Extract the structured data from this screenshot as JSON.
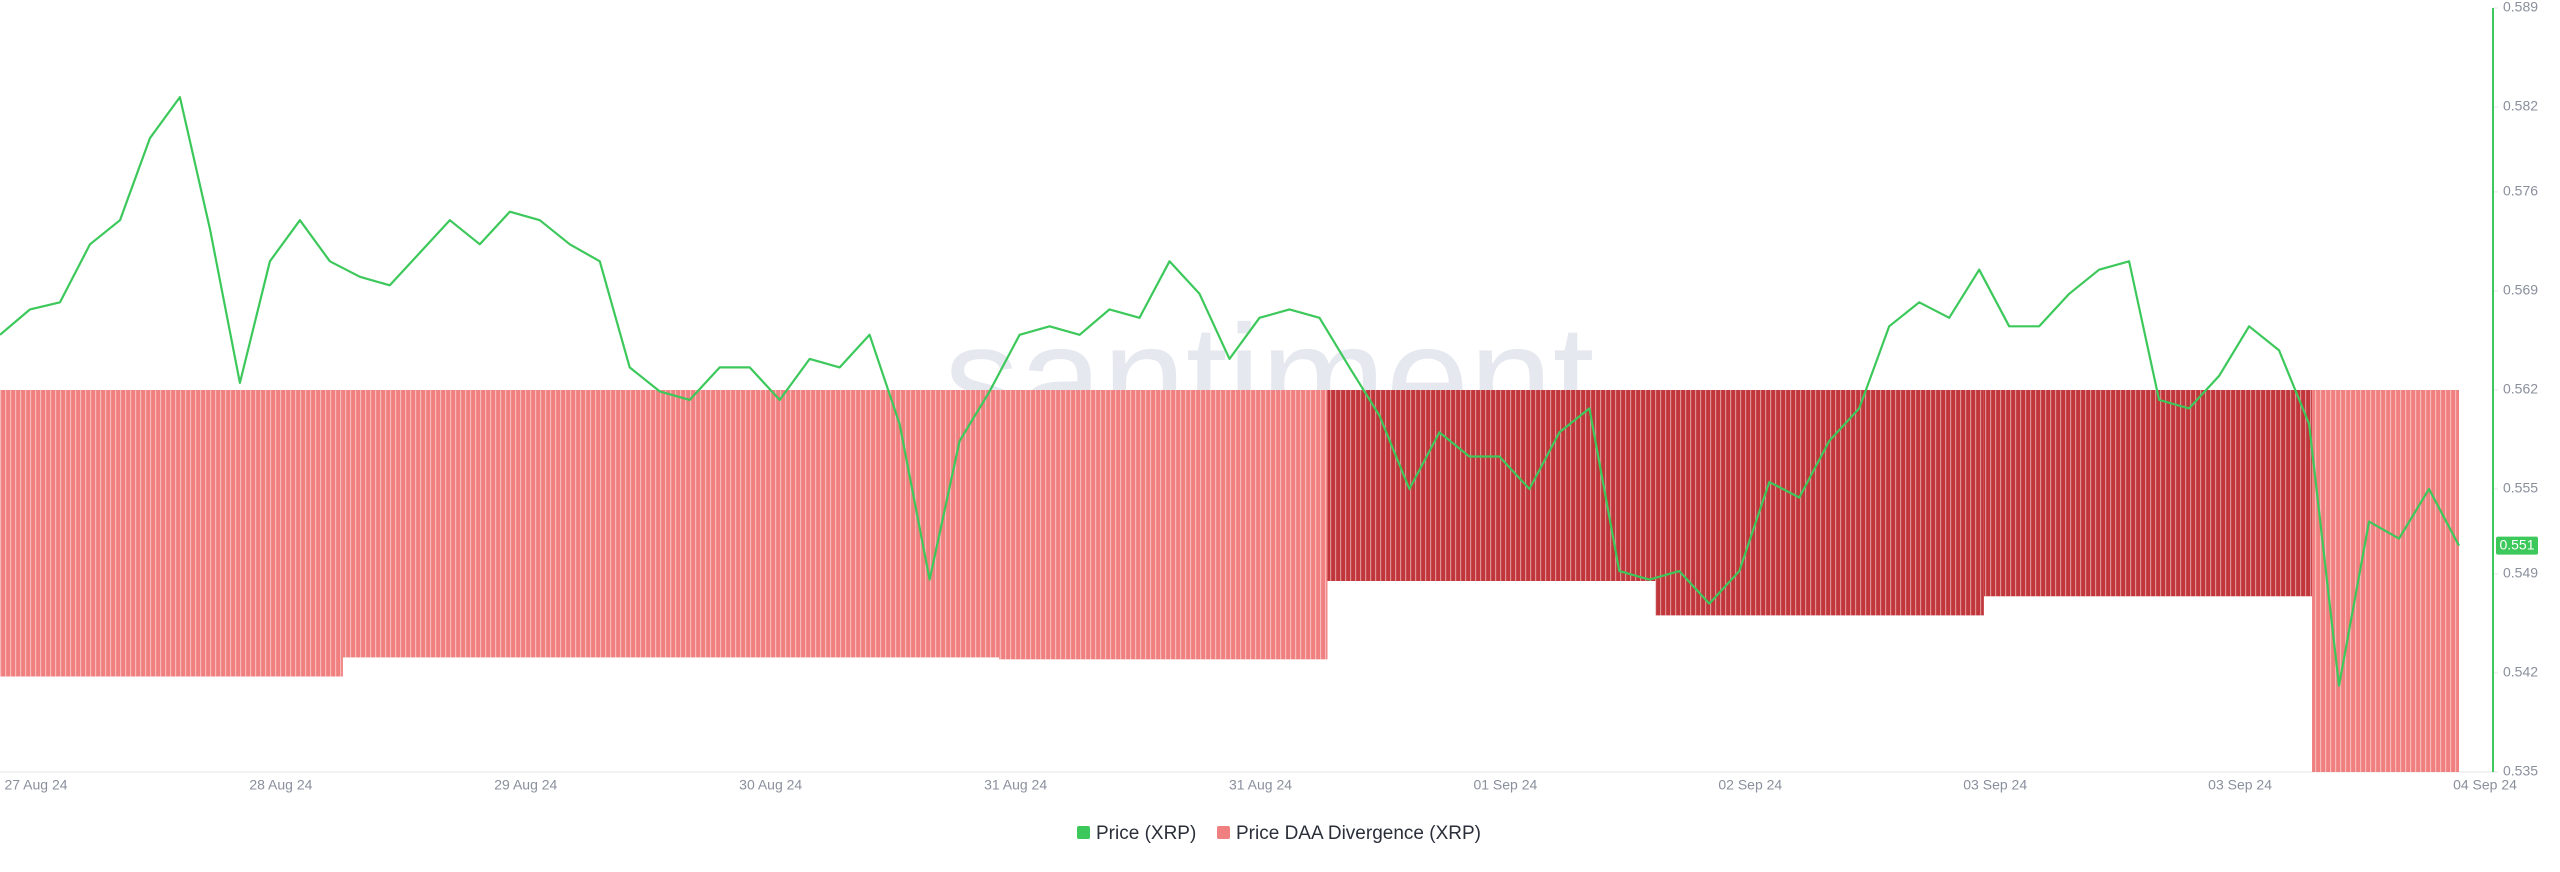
{
  "chart_data": {
    "type": "line_bar",
    "watermark": "santiment.",
    "xtick_labels": [
      "27 Aug 24",
      "28 Aug 24",
      "29 Aug 24",
      "30 Aug 24",
      "31 Aug 24",
      "31 Aug 24",
      "01 Sep 24",
      "02 Sep 24",
      "03 Sep 24",
      "03 Sep 24",
      "04 Sep 24"
    ],
    "ylim": [
      0.535,
      0.589
    ],
    "yticks": [
      0.535,
      0.542,
      0.549,
      0.555,
      0.562,
      0.569,
      0.576,
      0.582,
      0.589
    ],
    "y2lim": [
      -1,
      1
    ],
    "current_value": 0.551,
    "series": [
      {
        "name": "Price (XRP)",
        "color": "#3cc85a",
        "values": [
          0.5659,
          0.5677,
          0.5682,
          0.5723,
          0.574,
          0.5798,
          0.5827,
          0.5734,
          0.5625,
          0.5711,
          0.574,
          0.5711,
          0.57,
          0.5694,
          0.5717,
          0.574,
          0.5723,
          0.5746,
          0.574,
          0.5723,
          0.5711,
          0.5636,
          0.5619,
          0.5613,
          0.5636,
          0.5636,
          0.5613,
          0.5642,
          0.5636,
          0.5659,
          0.5596,
          0.5486,
          0.5584,
          0.5619,
          0.5659,
          0.5665,
          0.5659,
          0.5677,
          0.5671,
          0.5711,
          0.5688,
          0.5642,
          0.5671,
          0.5677,
          0.5671,
          0.5636,
          0.5602,
          0.555,
          0.559,
          0.5573,
          0.5573,
          0.555,
          0.559,
          0.5607,
          0.5492,
          0.5486,
          0.5492,
          0.5469,
          0.5492,
          0.5555,
          0.5544,
          0.5584,
          0.5607,
          0.5665,
          0.5682,
          0.5671,
          0.5705,
          0.5665,
          0.5665,
          0.5688,
          0.5705,
          0.5711,
          0.5613,
          0.5607,
          0.563,
          0.5665,
          0.5648,
          0.5596,
          0.5411,
          0.5527,
          0.5515,
          0.555,
          0.551
        ]
      },
      {
        "name": "Price DAA Divergence (XRP)",
        "color": "#f07f7f",
        "axis": "y2",
        "values": [
          -0.75,
          -0.7,
          -0.7,
          -0.705,
          -0.5,
          -0.59,
          -0.54,
          -1.0
        ],
        "colors": [
          "#f07f7f",
          "#f07f7f",
          "#f07f7f",
          "#f07f7f",
          "#c1363a",
          "#c1363a",
          "#c1363a",
          "#f07f7f"
        ]
      }
    ]
  }
}
